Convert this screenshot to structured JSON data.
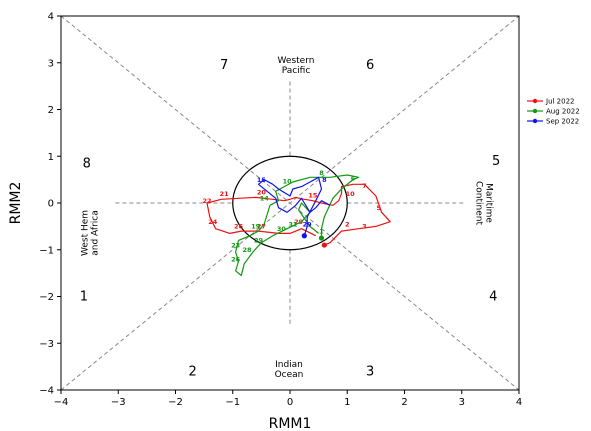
{
  "chart_data": {
    "type": "line",
    "xlabel": "RMM1",
    "ylabel": "RMM2",
    "xlim": [
      -4,
      4
    ],
    "ylim": [
      -4,
      4
    ],
    "xticks": [
      "−4",
      "−3",
      "−2",
      "−1",
      "0",
      "1",
      "2",
      "3",
      "4"
    ],
    "yticks": [
      "−4",
      "−3",
      "−2",
      "−1",
      "0",
      "1",
      "2",
      "3",
      "4"
    ],
    "phases": [
      "1",
      "2",
      "3",
      "4",
      "5",
      "6",
      "7",
      "8"
    ],
    "regions": {
      "western_pacific": [
        "Western",
        "Pacific"
      ],
      "indian_ocean": [
        "Indian",
        "Ocean"
      ],
      "maritime_continent": [
        "Maritime",
        "Continent"
      ],
      "west_hem_africa": [
        "West Hem",
        "and Africa"
      ]
    },
    "legend_position": "right",
    "series": [
      {
        "name": "Jul 2022",
        "color": "#ee1111",
        "points": [
          [
            0.6,
            -0.9
          ],
          [
            0.7,
            -0.85
          ],
          [
            0.9,
            -0.6
          ],
          [
            1.2,
            -0.55
          ],
          [
            1.5,
            -0.5
          ],
          [
            1.75,
            -0.4
          ],
          [
            1.6,
            -0.2
          ],
          [
            1.5,
            0.15
          ],
          [
            1.3,
            0.4
          ],
          [
            1.1,
            0.4
          ],
          [
            0.9,
            0.35
          ],
          [
            0.9,
            0.2
          ],
          [
            0.85,
            0.05
          ],
          [
            0.75,
            -0.05
          ],
          [
            0.55,
            0.0
          ],
          [
            0.4,
            0.05
          ],
          [
            0.25,
            0.08
          ],
          [
            0.1,
            0.12
          ],
          [
            0.0,
            0.08
          ],
          [
            -0.1,
            0.05
          ],
          [
            -0.3,
            0.08
          ],
          [
            -0.6,
            0.12
          ],
          [
            -0.9,
            0.1
          ],
          [
            -1.2,
            0.08
          ],
          [
            -1.45,
            0.0
          ],
          [
            -1.4,
            -0.3
          ],
          [
            -1.3,
            -0.55
          ],
          [
            -1.05,
            -0.65
          ],
          [
            -0.85,
            -0.6
          ],
          [
            -0.55,
            -0.6
          ],
          [
            -0.2,
            -0.65
          ],
          [
            0.0,
            -0.65
          ],
          [
            0.2,
            -0.55
          ],
          [
            0.45,
            -0.7
          ]
        ],
        "day_labels": [
          {
            "x": 1.0,
            "y": -0.5,
            "t": "2"
          },
          {
            "x": 1.3,
            "y": -0.55,
            "t": "3"
          },
          {
            "x": 1.55,
            "y": -0.15,
            "t": "5"
          },
          {
            "x": 1.3,
            "y": 0.32,
            "t": "7"
          },
          {
            "x": 1.05,
            "y": 0.15,
            "t": "10"
          },
          {
            "x": 0.4,
            "y": 0.12,
            "t": "15"
          },
          {
            "x": -0.5,
            "y": 0.18,
            "t": "20"
          },
          {
            "x": -1.15,
            "y": 0.15,
            "t": "21"
          },
          {
            "x": -1.45,
            "y": 0.0,
            "t": "22"
          },
          {
            "x": -1.35,
            "y": -0.45,
            "t": "24"
          },
          {
            "x": -0.9,
            "y": -0.55,
            "t": "26"
          },
          {
            "x": -0.5,
            "y": -0.55,
            "t": "27"
          },
          {
            "x": 0.15,
            "y": -0.45,
            "t": "29"
          }
        ]
      },
      {
        "name": "Aug 2022",
        "color": "#119911",
        "points": [
          [
            0.55,
            -0.75
          ],
          [
            0.55,
            -0.55
          ],
          [
            0.6,
            -0.3
          ],
          [
            0.75,
            0.1
          ],
          [
            0.9,
            0.3
          ],
          [
            1.1,
            0.5
          ],
          [
            1.2,
            0.55
          ],
          [
            1.0,
            0.6
          ],
          [
            0.7,
            0.55
          ],
          [
            0.35,
            0.55
          ],
          [
            0.05,
            0.45
          ],
          [
            -0.1,
            0.35
          ],
          [
            -0.25,
            0.25
          ],
          [
            -0.2,
            0.05
          ],
          [
            -0.35,
            -0.05
          ],
          [
            -0.4,
            -0.25
          ],
          [
            -0.45,
            -0.45
          ],
          [
            -0.55,
            -0.6
          ],
          [
            -0.7,
            -0.7
          ],
          [
            -0.9,
            -0.8
          ],
          [
            -0.95,
            -1.05
          ],
          [
            -0.9,
            -1.25
          ],
          [
            -0.95,
            -1.45
          ],
          [
            -0.85,
            -1.55
          ],
          [
            -0.8,
            -1.3
          ],
          [
            -0.65,
            -1.05
          ],
          [
            -0.5,
            -0.85
          ],
          [
            -0.3,
            -0.7
          ],
          [
            -0.05,
            -0.55
          ],
          [
            0.2,
            -0.4
          ],
          [
            0.35,
            -0.2
          ],
          [
            0.2,
            0.0
          ],
          [
            0.15,
            -0.15
          ],
          [
            0.35,
            -0.5
          ],
          [
            0.5,
            -0.65
          ]
        ],
        "day_labels": [
          {
            "x": 0.55,
            "y": -0.65,
            "t": "1"
          },
          {
            "x": 1.1,
            "y": 0.48,
            "t": "6"
          },
          {
            "x": 0.55,
            "y": 0.6,
            "t": "8"
          },
          {
            "x": -0.05,
            "y": 0.42,
            "t": "10"
          },
          {
            "x": -0.45,
            "y": 0.05,
            "t": "14"
          },
          {
            "x": -0.6,
            "y": -0.55,
            "t": "19"
          },
          {
            "x": -0.95,
            "y": -0.95,
            "t": "23"
          },
          {
            "x": -0.95,
            "y": -1.25,
            "t": "26"
          },
          {
            "x": -0.75,
            "y": -1.05,
            "t": "28"
          },
          {
            "x": -0.55,
            "y": -0.85,
            "t": "29"
          },
          {
            "x": -0.15,
            "y": -0.6,
            "t": "30"
          },
          {
            "x": 0.05,
            "y": -0.5,
            "t": "31"
          }
        ]
      },
      {
        "name": "Sep 2022",
        "color": "#1111ee",
        "points": [
          [
            0.25,
            -0.7
          ],
          [
            0.3,
            -0.5
          ],
          [
            0.3,
            -0.3
          ],
          [
            0.45,
            0.05
          ],
          [
            0.55,
            0.3
          ],
          [
            0.5,
            0.55
          ],
          [
            0.35,
            0.45
          ],
          [
            0.2,
            0.35
          ],
          [
            0.05,
            0.3
          ],
          [
            0.0,
            0.15
          ],
          [
            -0.2,
            0.3
          ],
          [
            -0.3,
            0.4
          ],
          [
            -0.45,
            0.5
          ],
          [
            -0.55,
            0.4
          ],
          [
            -0.4,
            0.25
          ],
          [
            -0.25,
            0.1
          ],
          [
            -0.2,
            -0.1
          ],
          [
            -0.05,
            -0.2
          ],
          [
            0.1,
            -0.05
          ],
          [
            0.2,
            0.1
          ],
          [
            0.25,
            0.0
          ],
          [
            0.35,
            -0.2
          ],
          [
            0.45,
            -0.1
          ],
          [
            0.55,
            0.05
          ],
          [
            0.7,
            -0.05
          ]
        ],
        "day_labels": [
          {
            "x": 0.6,
            "y": 0.45,
            "t": "8"
          },
          {
            "x": -0.5,
            "y": 0.45,
            "t": "15"
          },
          {
            "x": 0.3,
            "y": -0.5,
            "t": "29"
          }
        ]
      }
    ]
  }
}
